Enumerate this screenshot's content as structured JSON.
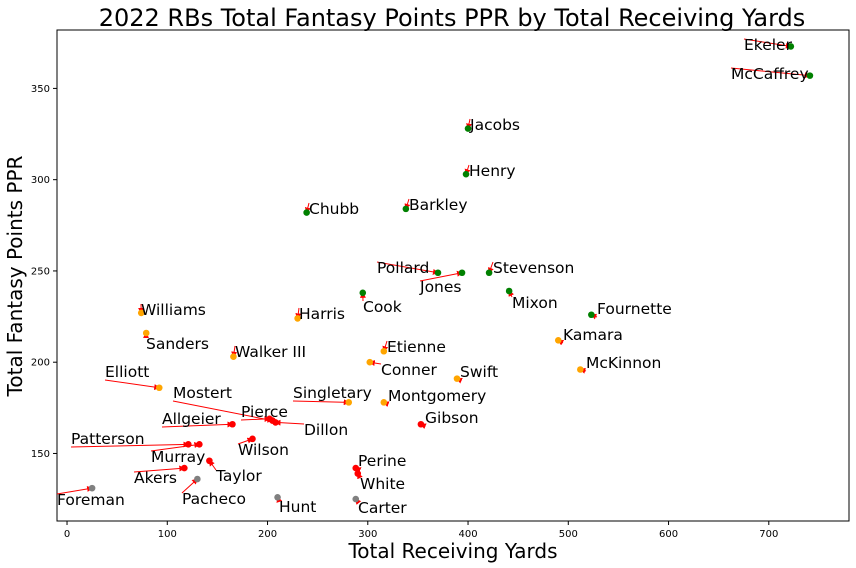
{
  "chart_data": {
    "type": "scatter",
    "title": "2022 RBs Total Fantasy Points PPR by Total Receiving Yards",
    "xlabel": "Total Receiving Yards",
    "ylabel": "Total Fantasy Points PPR",
    "xlim": [
      -10,
      780
    ],
    "ylim": [
      113,
      382
    ],
    "xticks": [
      0,
      100,
      200,
      300,
      400,
      500,
      600,
      700
    ],
    "yticks": [
      150,
      200,
      250,
      300,
      350
    ],
    "grid": false,
    "colors": {
      "green": "#008000",
      "orange": "#FFA500",
      "red": "#FF0000",
      "gray": "#808080",
      "arrow": "#FF0000"
    },
    "points": [
      {
        "name": "Ekeler",
        "x": 722,
        "y": 373,
        "color": "green",
        "label_offset": [
          -50,
          -9
        ]
      },
      {
        "name": "McCaffrey",
        "x": 741,
        "y": 357,
        "color": "green",
        "label_offset": [
          -83,
          -9
        ]
      },
      {
        "name": "Jacobs",
        "x": 400,
        "y": 328,
        "color": "green",
        "label_offset": [
          0,
          -9
        ]
      },
      {
        "name": "Henry",
        "x": 398,
        "y": 303,
        "color": "green",
        "label_offset": [
          0,
          -9
        ]
      },
      {
        "name": "Barkley",
        "x": 338,
        "y": 284,
        "color": "green",
        "label_offset": [
          2,
          -9
        ]
      },
      {
        "name": "Chubb",
        "x": 239,
        "y": 282,
        "color": "green",
        "label_offset": [
          2,
          -9
        ]
      },
      {
        "name": "Pollard",
        "x": 370,
        "y": 249,
        "color": "green",
        "label_offset": [
          -62,
          -9
        ]
      },
      {
        "name": "Jones",
        "x": 394,
        "y": 249,
        "color": "green",
        "label_offset": [
          -44,
          14
        ]
      },
      {
        "name": "Stevenson",
        "x": 421,
        "y": 249,
        "color": "green",
        "label_offset": [
          2,
          -9
        ]
      },
      {
        "name": "Cook",
        "x": 295,
        "y": 238,
        "color": "green",
        "label_offset": [
          -2,
          14
        ]
      },
      {
        "name": "Mixon",
        "x": 441,
        "y": 239,
        "color": "green",
        "label_offset": [
          2,
          14
        ]
      },
      {
        "name": "Fournette",
        "x": 523,
        "y": 226,
        "color": "green",
        "label_offset": [
          2,
          -8
        ]
      },
      {
        "name": "Williams",
        "x": 74,
        "y": 227,
        "color": "orange",
        "label_offset": [
          2,
          -9
        ]
      },
      {
        "name": "Harris",
        "x": 230,
        "y": 224,
        "color": "orange",
        "label_offset": [
          2,
          -9
        ]
      },
      {
        "name": "Sanders",
        "x": 79,
        "y": 216,
        "color": "orange",
        "label_offset": [
          2,
          14
        ]
      },
      {
        "name": "Kamara",
        "x": 490,
        "y": 212,
        "color": "orange",
        "label_offset": [
          2,
          -9
        ]
      },
      {
        "name": "Walker III",
        "x": 166,
        "y": 203,
        "color": "orange",
        "label_offset": [
          2,
          -9
        ]
      },
      {
        "name": "Etienne",
        "x": 316,
        "y": 206,
        "color": "orange",
        "label_offset": [
          2,
          -9
        ]
      },
      {
        "name": "Conner",
        "x": 302,
        "y": 200,
        "color": "orange",
        "label_offset": [
          12,
          11
        ]
      },
      {
        "name": "McKinnon",
        "x": 512,
        "y": 196,
        "color": "orange",
        "label_offset": [
          2,
          -9
        ]
      },
      {
        "name": "Swift",
        "x": 389,
        "y": 191,
        "color": "orange",
        "label_offset": [
          2,
          -9
        ]
      },
      {
        "name": "Elliott",
        "x": 92,
        "y": 186,
        "color": "orange",
        "label_offset": [
          -52,
          -14
        ]
      },
      {
        "name": "Singletary",
        "x": 281,
        "y": 178,
        "color": "orange",
        "label_offset": [
          -56,
          -14
        ]
      },
      {
        "name": "Montgomery",
        "x": 316,
        "y": 178,
        "color": "orange",
        "label_offset": [
          2,
          -9
        ]
      },
      {
        "name": "Mostert",
        "x": 205,
        "y": 168,
        "color": "red",
        "label_offset": [
          -94,
          -26
        ]
      },
      {
        "name": "Pierce",
        "x": 202,
        "y": 169,
        "color": "red",
        "label_offset": [
          -28,
          -12
        ]
      },
      {
        "name": "Dillon",
        "x": 208,
        "y": 167,
        "color": "red",
        "label_offset": [
          30,
          14
        ]
      },
      {
        "name": "Allgeier",
        "x": 165,
        "y": 166,
        "color": "red",
        "label_offset": [
          -72,
          -10
        ]
      },
      {
        "name": "Gibson",
        "x": 353,
        "y": 166,
        "color": "red",
        "label_offset": [
          2,
          -9
        ]
      },
      {
        "name": "Patterson",
        "x": 121,
        "y": 155,
        "color": "red",
        "label_offset": [
          -118,
          -9
        ]
      },
      {
        "name": "Murray",
        "x": 132,
        "y": 155,
        "color": "red",
        "label_offset": [
          -46,
          10
        ]
      },
      {
        "name": "Wilson",
        "x": 185,
        "y": 158,
        "color": "red",
        "label_offset": [
          -14,
          14
        ]
      },
      {
        "name": "Taylor",
        "x": 142,
        "y": 146,
        "color": "red",
        "label_offset": [
          5,
          16
        ]
      },
      {
        "name": "Akers",
        "x": 117,
        "y": 142,
        "color": "red",
        "label_offset": [
          -50,
          10
        ]
      },
      {
        "name": "Perine",
        "x": 288,
        "y": 142,
        "color": "red",
        "label_offset": [
          2,
          -5
        ]
      },
      {
        "name": "White",
        "x": 290,
        "y": 139,
        "color": "red",
        "label_offset": [
          2,
          12
        ]
      },
      {
        "name": "Pacheco",
        "x": 130,
        "y": 136,
        "color": "gray",
        "label_offset": [
          -14,
          18
        ]
      },
      {
        "name": "Foreman",
        "x": 25,
        "y": 131,
        "color": "gray",
        "label_offset": [
          -34,
          12
        ]
      },
      {
        "name": "Hunt",
        "x": 210,
        "y": 126,
        "color": "gray",
        "label_offset": [
          2,
          12
        ]
      },
      {
        "name": "Carter",
        "x": 288,
        "y": 125,
        "color": "gray",
        "label_offset": [
          2,
          12
        ]
      }
    ]
  }
}
